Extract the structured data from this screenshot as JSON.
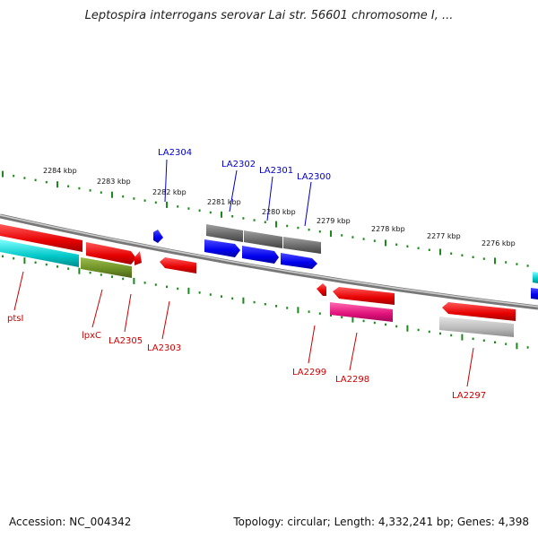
{
  "title": "Leptospira interrogans serovar Lai str. 56601 chromosome I, ...",
  "footer": {
    "accession": "Accession: NC_004342",
    "topology": "Topology: circular; Length: 4,332,241 bp; Genes: 4,398"
  },
  "colors": {
    "backbone": "#7a7a7a",
    "ticks": "#1a8a1a",
    "upper_label": "#0000cc",
    "lower_label": "#cc0000",
    "red": "#e60000",
    "blue": "#0000ee",
    "cyan": "#00c8c8",
    "olive": "#6b8e23",
    "magenta": "#e0107a",
    "gray": "#666666",
    "lightgray": "#b8b8b8"
  },
  "scale_labels": [
    "2284 kbp",
    "2283 kbp",
    "2282 kbp",
    "2281 kbp",
    "2280 kbp",
    "2279 kbp",
    "2278 kbp",
    "2277 kbp",
    "2276 kbp"
  ],
  "gene_labels": [
    "LA2304",
    "LA2302",
    "LA2301",
    "LA2300",
    "ptsI",
    "lpxC",
    "LA2305",
    "LA2303",
    "LA2299",
    "LA2298",
    "LA2297"
  ]
}
